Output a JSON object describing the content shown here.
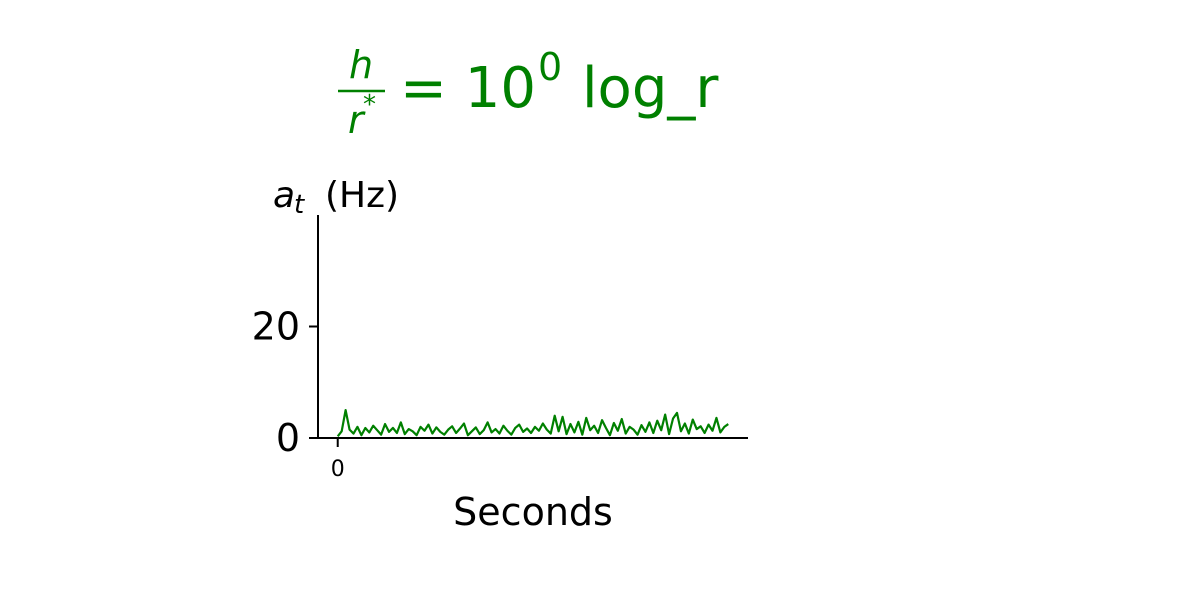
{
  "chart_data": {
    "type": "line",
    "title": {
      "numerator": "h",
      "denominator": "r",
      "denominator_sup": "*",
      "main": "= 10",
      "exponent": "0",
      "suffix": "log_r"
    },
    "ylabel": {
      "symbol": "a",
      "subscript": "t",
      "unit": "(Hz)"
    },
    "xlabel": "Seconds",
    "xlim": [
      -5,
      104
    ],
    "xticks": [
      0
    ],
    "ylim": [
      0,
      40
    ],
    "yticks": [
      0,
      20
    ],
    "x": [
      0,
      1,
      2,
      3,
      4,
      5,
      6,
      7,
      8,
      9,
      10,
      11,
      12,
      13,
      14,
      15,
      16,
      17,
      18,
      19,
      20,
      21,
      22,
      23,
      24,
      25,
      26,
      27,
      28,
      29,
      30,
      31,
      32,
      33,
      34,
      35,
      36,
      37,
      38,
      39,
      40,
      41,
      42,
      43,
      44,
      45,
      46,
      47,
      48,
      49,
      50,
      51,
      52,
      53,
      54,
      55,
      56,
      57,
      58,
      59,
      60,
      61,
      62,
      63,
      64,
      65,
      66,
      67,
      68,
      69,
      70,
      71,
      72,
      73,
      74,
      75,
      76,
      77,
      78,
      79,
      80,
      81,
      82,
      83,
      84,
      85,
      86,
      87,
      88,
      89,
      90,
      91,
      92,
      93,
      94,
      95,
      96,
      97,
      98,
      99
    ],
    "series": [
      {
        "color": "#008000",
        "values": [
          0.3,
          1.2,
          5.0,
          1.5,
          0.8,
          2.0,
          0.5,
          1.8,
          1.0,
          2.2,
          1.4,
          0.6,
          2.5,
          1.1,
          1.8,
          0.9,
          2.8,
          0.7,
          1.6,
          1.2,
          0.5,
          2.0,
          1.3,
          2.4,
          0.8,
          1.9,
          1.1,
          0.6,
          1.5,
          2.1,
          0.9,
          1.7,
          2.6,
          0.5,
          1.2,
          1.9,
          0.7,
          1.4,
          2.8,
          1.0,
          1.6,
          0.8,
          2.2,
          1.3,
          0.6,
          1.8,
          2.4,
          1.1,
          1.7,
          0.9,
          2.0,
          1.3,
          2.6,
          1.5,
          0.8,
          4.0,
          1.2,
          3.8,
          0.7,
          2.5,
          1.0,
          2.9,
          0.6,
          3.6,
          1.4,
          2.2,
          0.9,
          3.2,
          1.8,
          0.5,
          2.7,
          1.3,
          3.4,
          0.8,
          2.0,
          1.5,
          0.6,
          2.3,
          1.1,
          2.8,
          0.9,
          3.1,
          1.4,
          4.2,
          0.7,
          3.5,
          4.5,
          1.2,
          2.6,
          0.8,
          3.3,
          1.6,
          2.1,
          0.9,
          2.4,
          1.3,
          3.6,
          1.0,
          2.0,
          2.5
        ]
      }
    ]
  }
}
